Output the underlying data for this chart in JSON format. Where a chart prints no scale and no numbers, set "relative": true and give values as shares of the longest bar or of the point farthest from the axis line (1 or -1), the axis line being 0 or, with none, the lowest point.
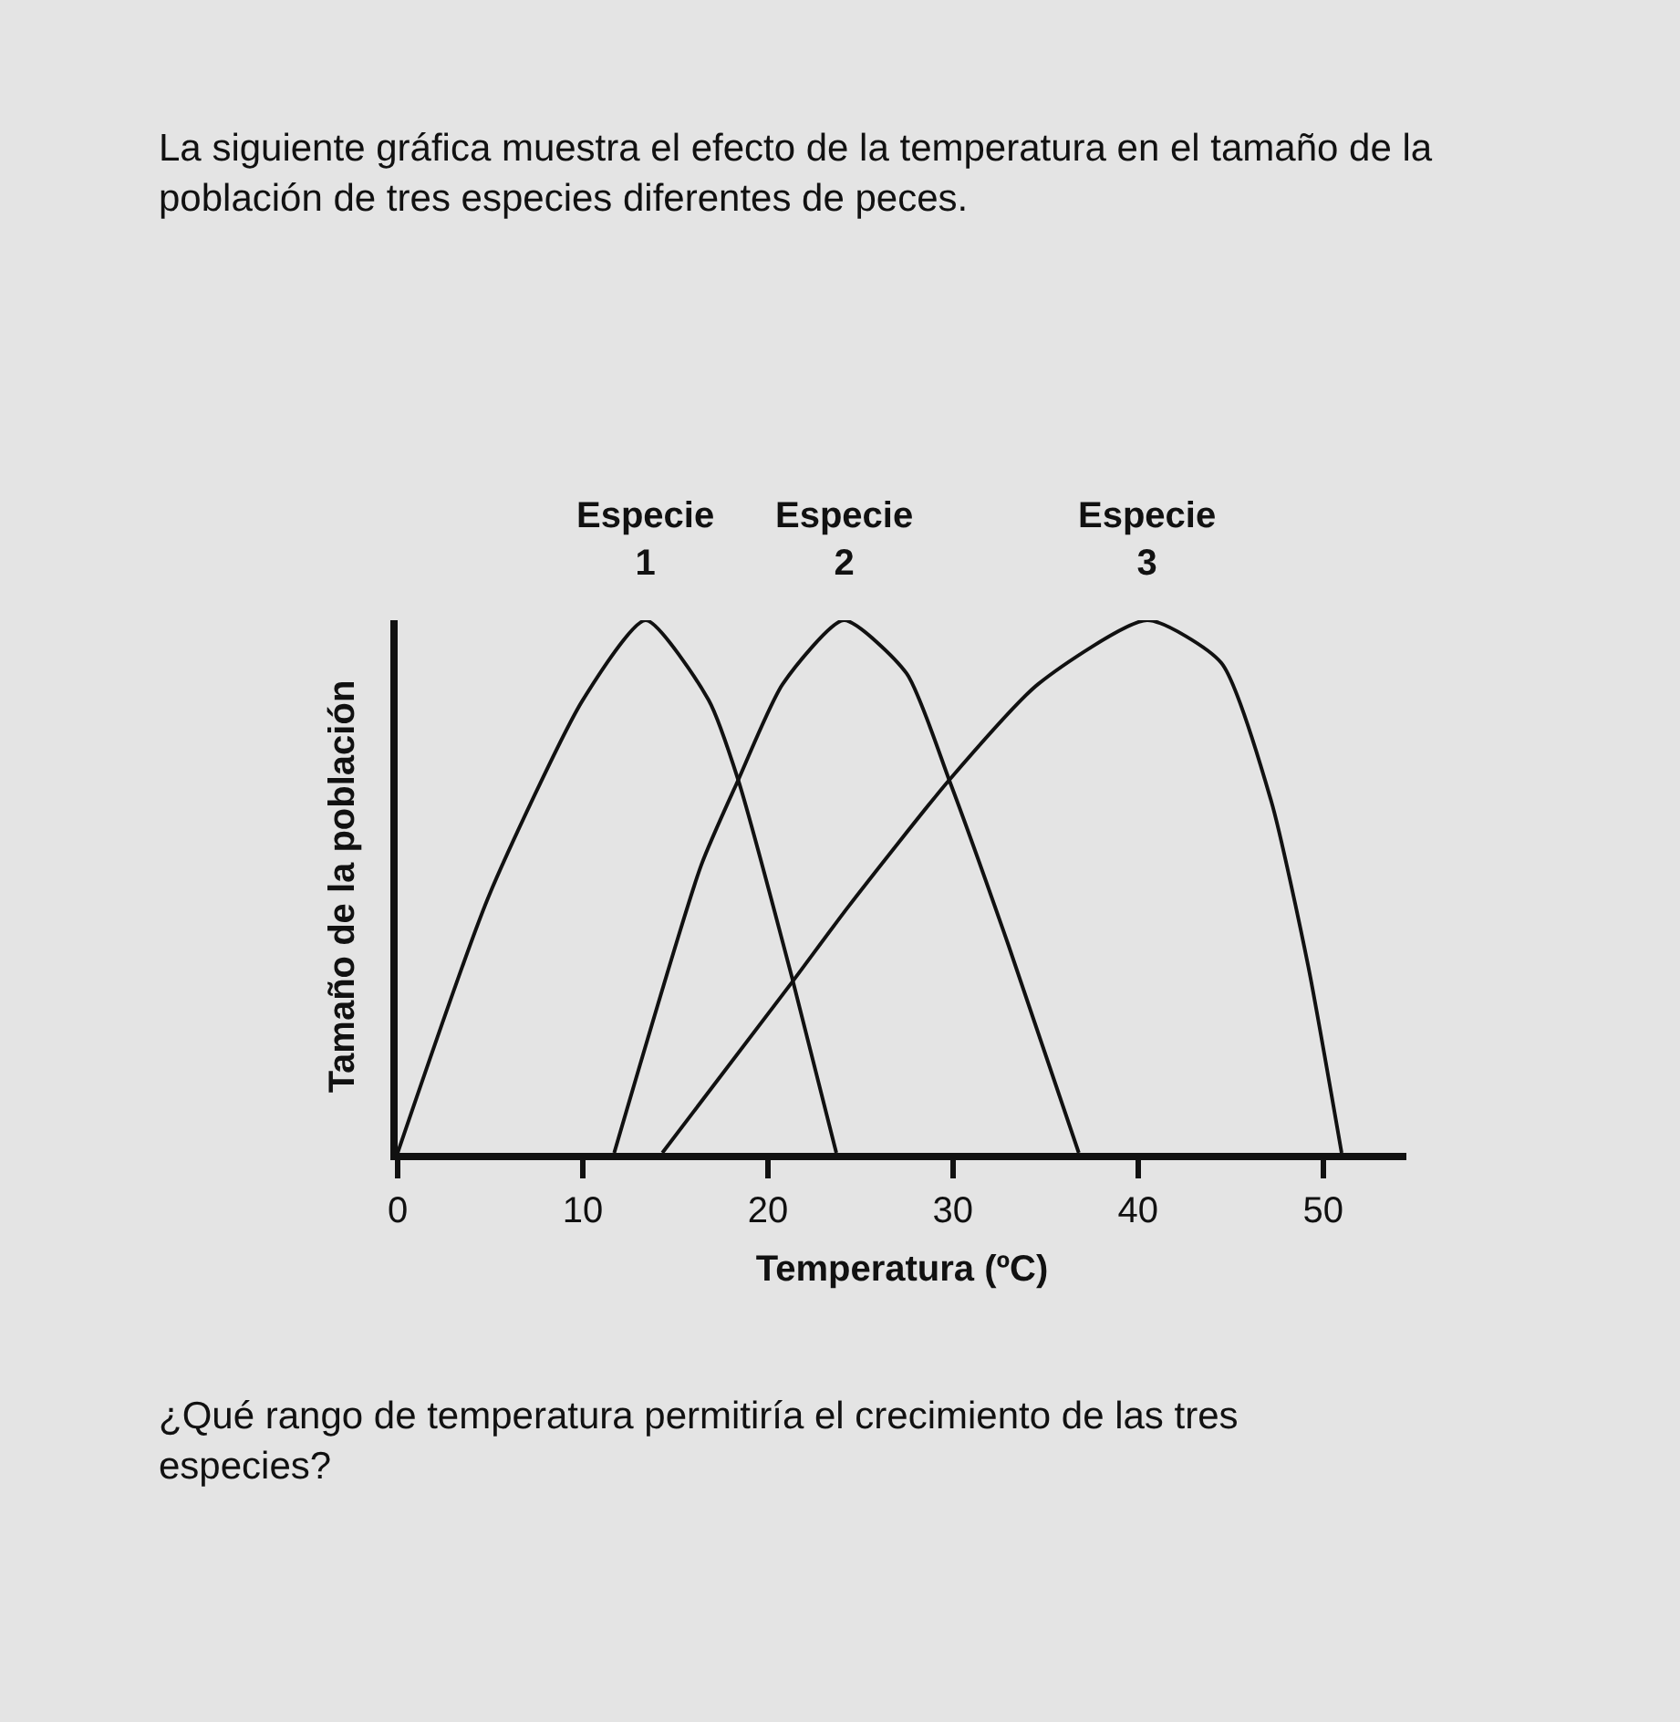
{
  "chart_data": {
    "type": "line",
    "title": "La siguiente gráfica muestra el efecto de la temperatura en el tamaño de la población de tres especies diferentes de peces.",
    "xlabel": "Temperatura (ºC)",
    "ylabel": "Tamaño de la población",
    "relative": true,
    "xlim": [
      0,
      54.5
    ],
    "xticks": [
      0,
      10,
      20,
      30,
      40,
      50
    ],
    "grid": false,
    "legend": false,
    "marker": "none",
    "line_style": "solid",
    "annotations": [
      "¿Qué rango de temperatura permitiría el crecimiento de las tres especies?"
    ],
    "series": [
      {
        "name": "Especie 1",
        "color": "#111111",
        "x": [
          0,
          4.9,
          10,
          13.4,
          16.8,
          18.4,
          21.3,
          23.7
        ],
        "values": [
          0,
          0.48,
          0.85,
          1.0,
          0.85,
          0.7,
          0.33,
          0
        ]
      },
      {
        "name": "Especie 2",
        "color": "#111111",
        "x": [
          11.7,
          16.4,
          18.4,
          20.8,
          24.1,
          27.5,
          29.8,
          33,
          36.8
        ],
        "values": [
          0,
          0.54,
          0.7,
          0.88,
          1.0,
          0.9,
          0.7,
          0.39,
          0
        ]
      },
      {
        "name": "Especie 3",
        "color": "#111111",
        "x": [
          14.3,
          21.3,
          24.3,
          29.8,
          34.6,
          40.5,
          44.5,
          47.2,
          49.2,
          51
        ],
        "values": [
          0,
          0.32,
          0.46,
          0.7,
          0.88,
          1.0,
          0.92,
          0.66,
          0.35,
          0
        ]
      }
    ]
  }
}
